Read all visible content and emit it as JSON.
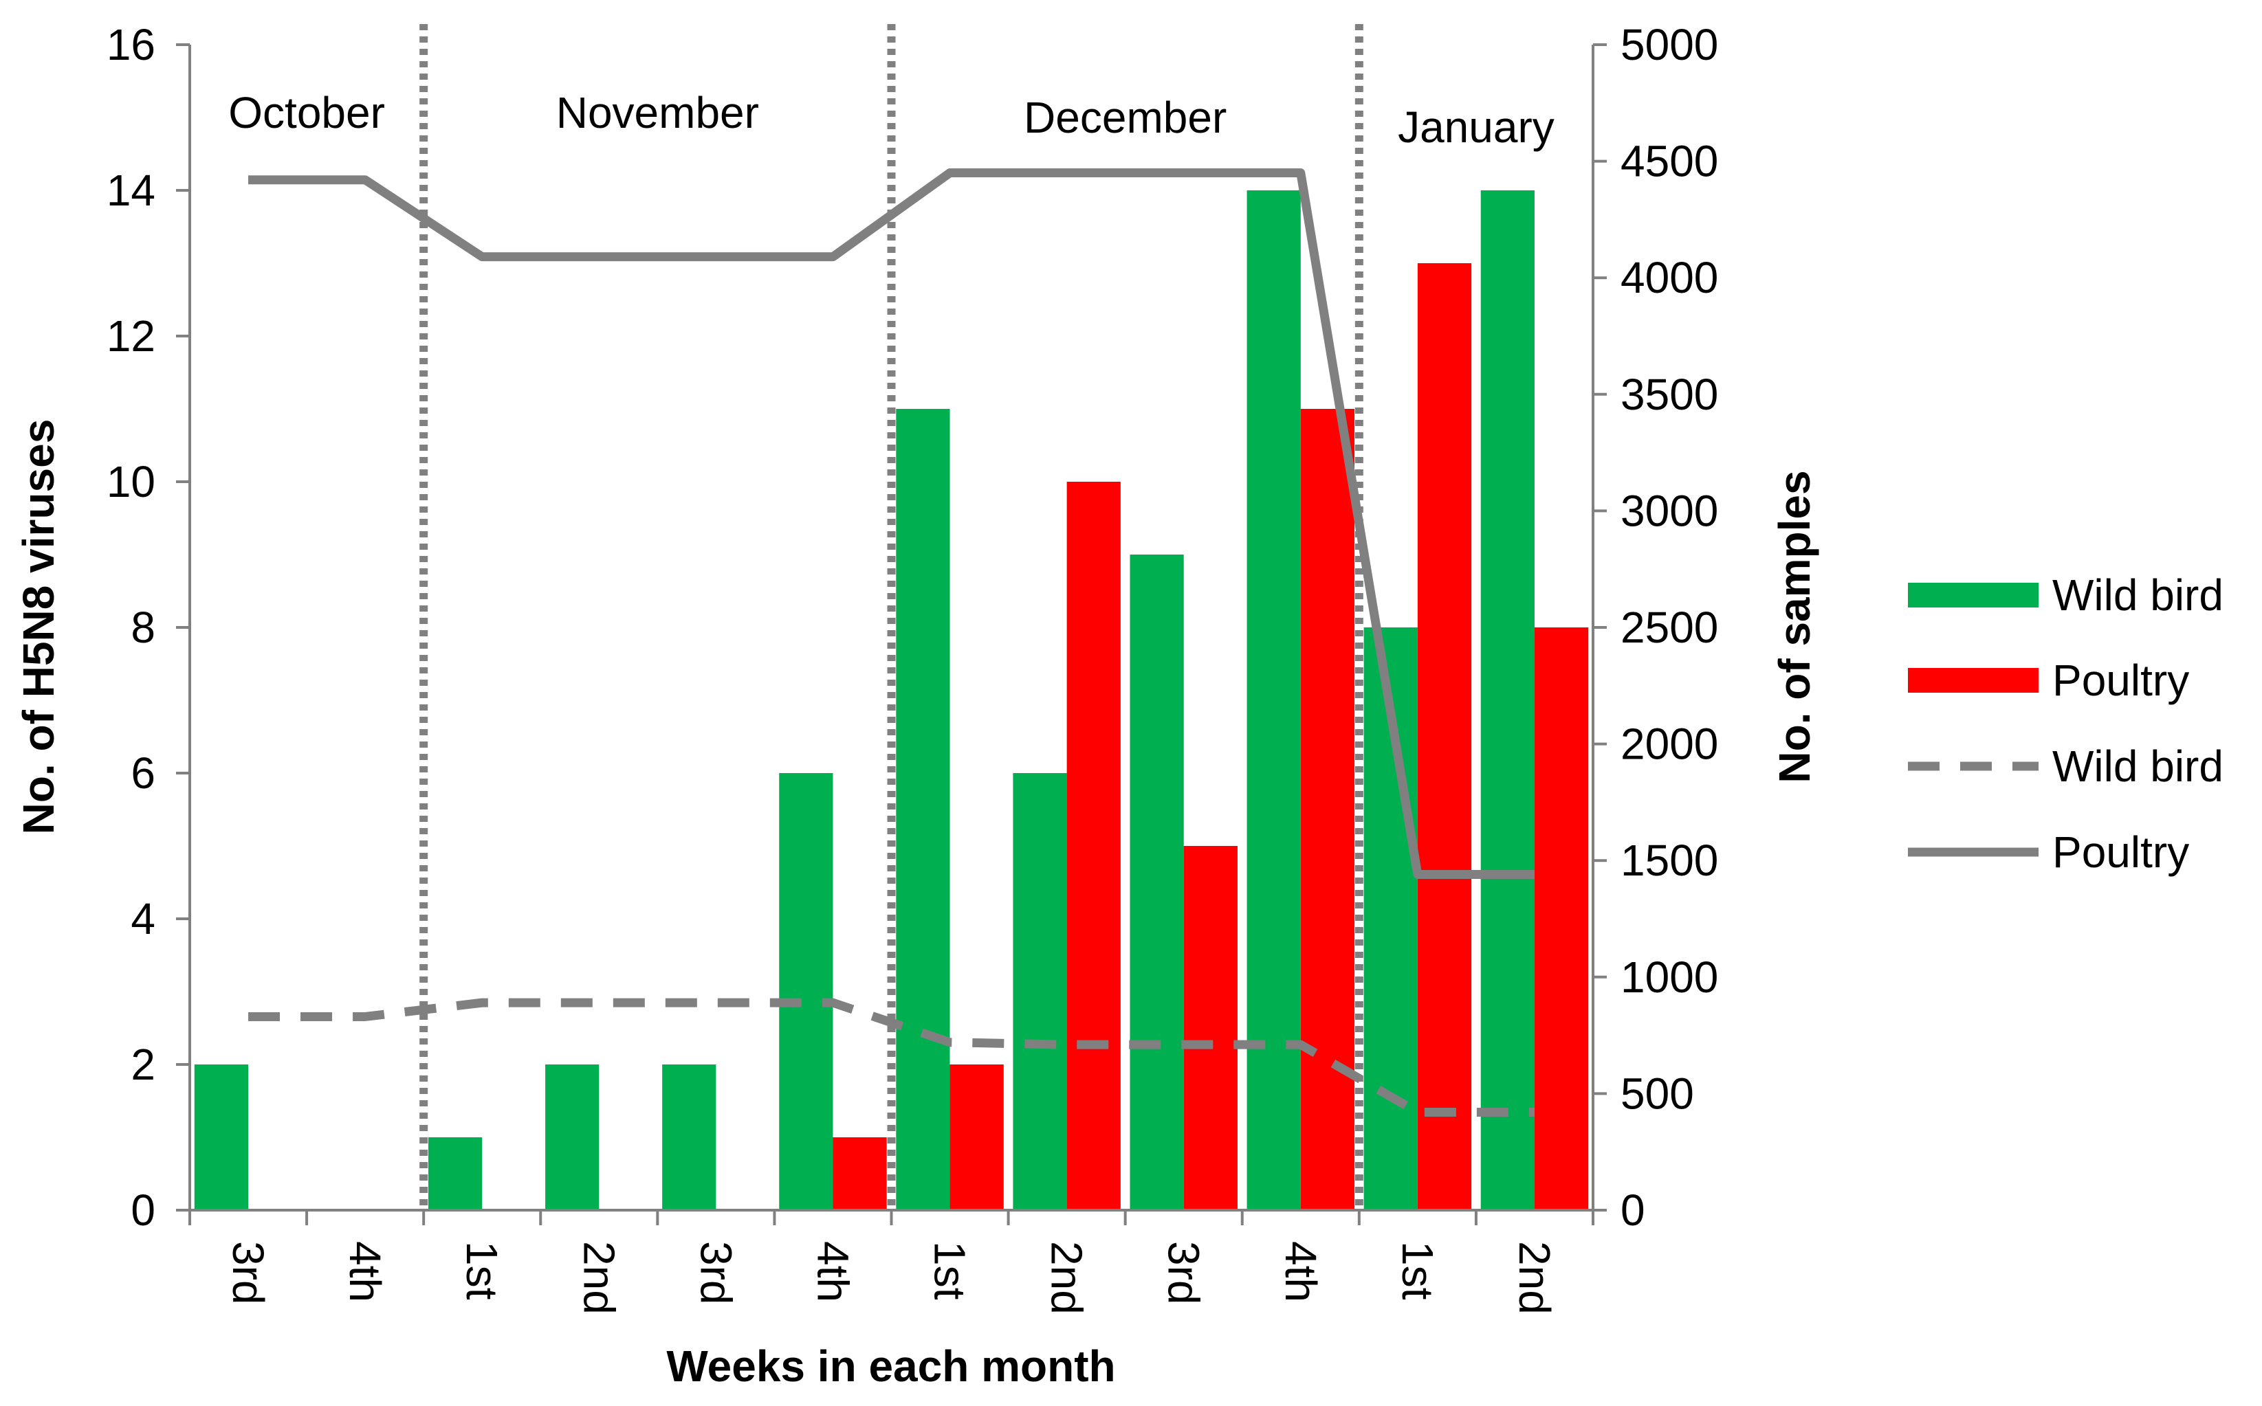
{
  "chart_data": {
    "type": "bar",
    "categories": [
      "3rd",
      "4th",
      "1st",
      "2nd",
      "3rd",
      "4th",
      "1st",
      "2nd",
      "3rd",
      "4th",
      "1st",
      "2nd"
    ],
    "months": [
      {
        "name": "October",
        "weeks": 2
      },
      {
        "name": "November",
        "weeks": 4
      },
      {
        "name": "December",
        "weeks": 4
      },
      {
        "name": "January",
        "weeks": 2
      }
    ],
    "xlabel": "Weeks in each month",
    "ylabel_left": "No. of H5N8 viruses",
    "ylabel_right": "No. of samples",
    "ylim_left": [
      0,
      16
    ],
    "ylim_right": [
      0,
      5000
    ],
    "yticks_left": [
      "0",
      "2",
      "4",
      "6",
      "8",
      "10",
      "12",
      "14",
      "16"
    ],
    "yticks_right": [
      "0",
      "500",
      "1000",
      "1500",
      "2000",
      "2500",
      "3000",
      "3500",
      "4000",
      "4500",
      "5000"
    ],
    "bar_series": [
      {
        "name": "Wild bird",
        "color": "#00B050",
        "axis": "left",
        "values": [
          2,
          0,
          1,
          2,
          2,
          6,
          11,
          6,
          9,
          14,
          8,
          14
        ]
      },
      {
        "name": "Poultry",
        "color": "#FF0000",
        "axis": "left",
        "values": [
          0,
          0,
          0,
          0,
          0,
          1,
          2,
          10,
          5,
          11,
          13,
          8
        ]
      }
    ],
    "line_series": [
      {
        "name": "Wild bird",
        "color": "#808080",
        "style": "dashed",
        "axis": "right",
        "values": [
          830,
          830,
          890,
          890,
          890,
          890,
          720,
          710,
          710,
          710,
          420,
          420
        ]
      },
      {
        "name": "Poultry",
        "color": "#808080",
        "style": "solid",
        "axis": "right",
        "values": [
          4420,
          4420,
          4090,
          4090,
          4090,
          4090,
          4450,
          4450,
          4450,
          4450,
          1440,
          1440
        ]
      }
    ],
    "legend": [
      {
        "label": "Wild bird",
        "kind": "bar",
        "color": "#00B050"
      },
      {
        "label": "Poultry",
        "kind": "bar",
        "color": "#FF0000"
      },
      {
        "label": "Wild bird",
        "kind": "line-dashed",
        "color": "#808080"
      },
      {
        "label": "Poultry",
        "kind": "line-solid",
        "color": "#808080"
      }
    ],
    "legend_position": "right",
    "grid": false
  }
}
